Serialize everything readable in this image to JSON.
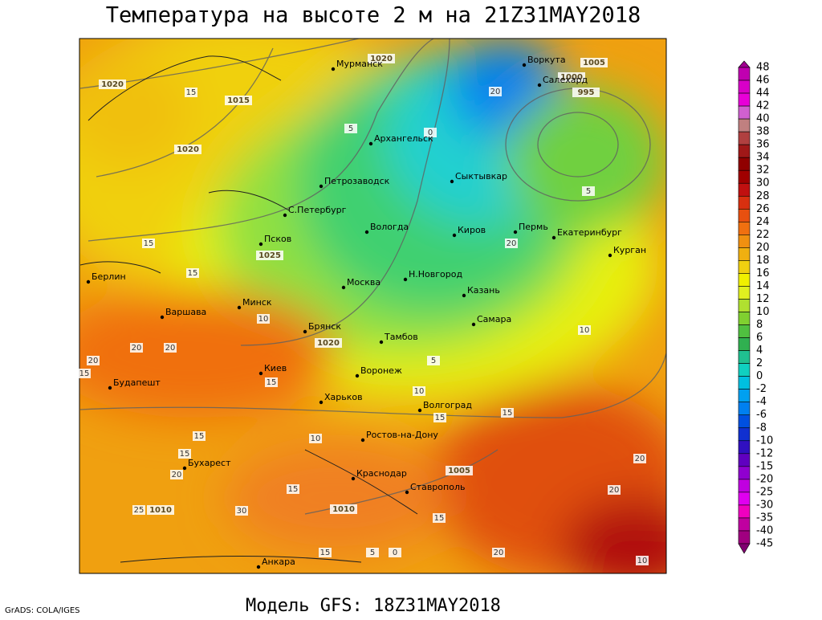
{
  "header": {
    "title": "Температура на высоте 2 м на 21Z31MAY2018"
  },
  "footer": {
    "model": "Модель GFS: 18Z31MAY2018",
    "credit": "GrADS: COLA/IGES"
  },
  "cities": [
    "Мурманск",
    "Воркута",
    "Салехард",
    "Архангельск",
    "Петрозаводск",
    "Сыктывкар",
    "С.Петербург",
    "Вологда",
    "Киров",
    "Пермь",
    "Екатеринбург",
    "Курган",
    "Псков",
    "Берлин",
    "Москва",
    "Н.Новгород",
    "Казань",
    "Варшава",
    "Минск",
    "Брянск",
    "Тамбов",
    "Самара",
    "Киев",
    "Воронеж",
    "Будапешт",
    "Харьков",
    "Волгоград",
    "Ростов-на-Дону",
    "Бухарест",
    "Краснодар",
    "Ставрополь",
    "Анкара"
  ],
  "isobar_labels": [
    1020,
    1020,
    1015,
    1020,
    1025,
    1020,
    1010,
    1005,
    1005,
    1000,
    995,
    1010
  ],
  "isotherm_labels": [
    15,
    15,
    15,
    10,
    5,
    0,
    10,
    5,
    15,
    20,
    20,
    20,
    15,
    15,
    15,
    10,
    5,
    10,
    15,
    20,
    20,
    25,
    30,
    20,
    15,
    20,
    10,
    20,
    5,
    0,
    15,
    15,
    20,
    15
  ],
  "colorbar": {
    "levels": [
      48,
      46,
      44,
      42,
      40,
      38,
      36,
      34,
      32,
      30,
      28,
      26,
      24,
      22,
      20,
      18,
      16,
      14,
      12,
      10,
      8,
      6,
      4,
      2,
      0,
      -2,
      -4,
      -6,
      -8,
      -10,
      -12,
      -15,
      -20,
      -25,
      -30,
      -35,
      -40,
      -45
    ],
    "colors": [
      "#a00090",
      "#c000b0",
      "#d800c8",
      "#e800d8",
      "#d060d0",
      "#c08080",
      "#b04040",
      "#a01818",
      "#900000",
      "#a00000",
      "#c01010",
      "#d83010",
      "#e85010",
      "#f07010",
      "#f09010",
      "#f0b010",
      "#f0d010",
      "#f0f000",
      "#e0f020",
      "#b0e030",
      "#80d030",
      "#50c040",
      "#30b050",
      "#20c090",
      "#10d0c0",
      "#00c0e0",
      "#00a0f0",
      "#0080f0",
      "#0050e0",
      "#1030d0",
      "#3010c0",
      "#6000c0",
      "#9000d0",
      "#c000e0",
      "#e000f0",
      "#f000c0",
      "#c000a0",
      "#a00080",
      "#800070"
    ]
  }
}
